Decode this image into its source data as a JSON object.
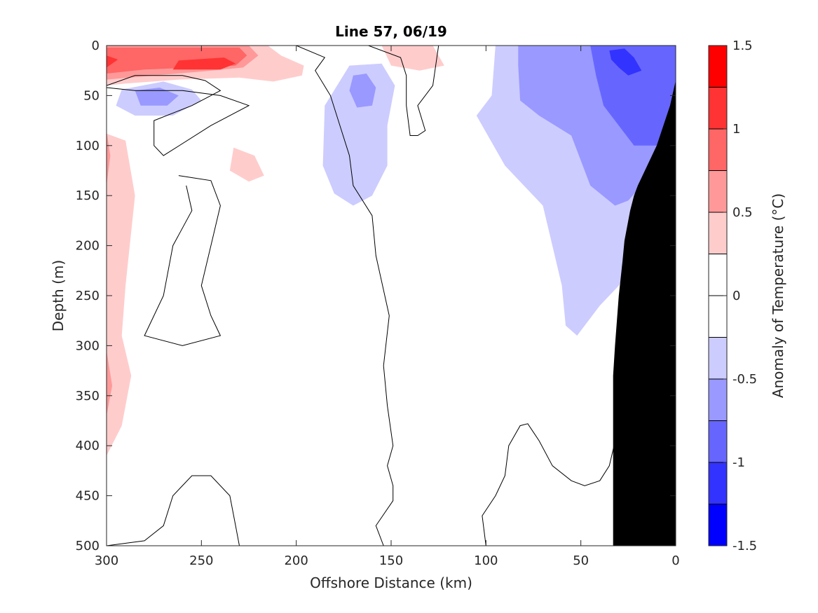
{
  "chart_data": {
    "type": "heatmap",
    "title": "Line 57, 06/19",
    "xlabel": "Offshore Distance (km)",
    "ylabel": "Depth (m)",
    "xlim": [
      300,
      0
    ],
    "ylim": [
      0,
      500
    ],
    "x_reversed": true,
    "y_reversed": true,
    "xticks": [
      300,
      250,
      200,
      150,
      100,
      50,
      0
    ],
    "yticks": [
      0,
      50,
      100,
      150,
      200,
      250,
      300,
      350,
      400,
      450,
      500
    ],
    "colorbar": {
      "label": "Anomaly of Temperature (°C)",
      "range": [
        -1.5,
        1.5
      ],
      "levels": [
        -1.5,
        -1.25,
        -1.0,
        -0.75,
        -0.5,
        -0.25,
        0,
        0.25,
        0.5,
        0.75,
        1.0,
        1.25,
        1.5
      ],
      "colors": [
        "#0000ff",
        "#3333ff",
        "#6666ff",
        "#9999ff",
        "#ccccff",
        "#ffffff",
        "#ffffff",
        "#ffcccc",
        "#ff9999",
        "#ff6666",
        "#ff3333",
        "#ff0000"
      ],
      "tick_labels": [
        "1.5",
        "1",
        "0.5",
        "0",
        "-0.5",
        "-1",
        "-1.5"
      ],
      "tick_values": [
        1.5,
        1.0,
        0.5,
        0,
        -0.5,
        -1.0,
        -1.5
      ]
    },
    "bathymetry_color": "#000000",
    "regions": [
      {
        "level": 0.5,
        "color": "#ffcccc",
        "points": [
          [
            300,
            0
          ],
          [
            215,
            0
          ],
          [
            208,
            10
          ],
          [
            196,
            20
          ],
          [
            197,
            30
          ],
          [
            212,
            36
          ],
          [
            230,
            32
          ],
          [
            262,
            34
          ],
          [
            290,
            38
          ],
          [
            300,
            40
          ]
        ]
      },
      {
        "level": 0.75,
        "color": "#ff9999",
        "points": [
          [
            300,
            0
          ],
          [
            225,
            0
          ],
          [
            220,
            10
          ],
          [
            228,
            22
          ],
          [
            250,
            26
          ],
          [
            275,
            30
          ],
          [
            300,
            34
          ]
        ]
      },
      {
        "level": 1.0,
        "color": "#ff6666",
        "points": [
          [
            300,
            2
          ],
          [
            230,
            2
          ],
          [
            226,
            10
          ],
          [
            232,
            20
          ],
          [
            255,
            22
          ],
          [
            280,
            24
          ],
          [
            300,
            28
          ]
        ]
      },
      {
        "level": 1.25,
        "color": "#ff3333",
        "points": [
          [
            300,
            10
          ],
          [
            294,
            14
          ],
          [
            300,
            22
          ]
        ]
      },
      {
        "level": 1.25,
        "color": "#ff3333",
        "points": [
          [
            262,
            15
          ],
          [
            238,
            12
          ],
          [
            232,
            18
          ],
          [
            240,
            24
          ],
          [
            265,
            24
          ]
        ]
      },
      {
        "level": 0.5,
        "color": "#ffcccc",
        "points": [
          [
            155,
            0
          ],
          [
            128,
            0
          ],
          [
            122,
            20
          ],
          [
            135,
            25
          ],
          [
            150,
            20
          ]
        ]
      },
      {
        "level": 0.5,
        "color": "#ffcccc",
        "points": [
          [
            300,
            88
          ],
          [
            290,
            95
          ],
          [
            285,
            150
          ],
          [
            290,
            240
          ],
          [
            292,
            290
          ],
          [
            287,
            330
          ],
          [
            292,
            380
          ],
          [
            300,
            410
          ]
        ]
      },
      {
        "level": 0.75,
        "color": "#ff9999",
        "points": [
          [
            300,
            85
          ],
          [
            298,
            110
          ],
          [
            300,
            140
          ]
        ]
      },
      {
        "level": 0.75,
        "color": "#ff9999",
        "points": [
          [
            300,
            305
          ],
          [
            297,
            340
          ],
          [
            300,
            370
          ]
        ]
      },
      {
        "level": 0.5,
        "color": "#ffcccc",
        "points": [
          [
            233,
            102
          ],
          [
            222,
            110
          ],
          [
            217,
            130
          ],
          [
            225,
            136
          ],
          [
            235,
            125
          ]
        ]
      },
      {
        "level": -0.25,
        "color": "#ccccff",
        "points": [
          [
            292,
            44
          ],
          [
            270,
            36
          ],
          [
            255,
            44
          ],
          [
            250,
            55
          ],
          [
            265,
            70
          ],
          [
            285,
            70
          ],
          [
            295,
            60
          ]
        ]
      },
      {
        "level": -0.5,
        "color": "#9999ff",
        "points": [
          [
            285,
            45
          ],
          [
            272,
            42
          ],
          [
            262,
            50
          ],
          [
            268,
            60
          ],
          [
            282,
            60
          ]
        ]
      },
      {
        "level": -0.25,
        "color": "#ccccff",
        "points": [
          [
            172,
            20
          ],
          [
            155,
            18
          ],
          [
            148,
            40
          ],
          [
            152,
            80
          ],
          [
            152,
            120
          ],
          [
            160,
            150
          ],
          [
            170,
            160
          ],
          [
            180,
            148
          ],
          [
            186,
            120
          ],
          [
            185,
            60
          ]
        ]
      },
      {
        "level": -0.5,
        "color": "#9999ff",
        "points": [
          [
            170,
            30
          ],
          [
            163,
            28
          ],
          [
            158,
            42
          ],
          [
            160,
            60
          ],
          [
            168,
            62
          ],
          [
            172,
            45
          ]
        ]
      },
      {
        "level": -0.25,
        "color": "#ccccff",
        "points": [
          [
            95,
            0
          ],
          [
            0,
            0
          ],
          [
            0,
            120
          ],
          [
            15,
            170
          ],
          [
            25,
            220
          ],
          [
            30,
            240
          ],
          [
            40,
            260
          ],
          [
            52,
            290
          ],
          [
            58,
            280
          ],
          [
            60,
            240
          ],
          [
            70,
            160
          ],
          [
            90,
            120
          ],
          [
            105,
            70
          ],
          [
            97,
            50
          ]
        ]
      },
      {
        "level": -0.5,
        "color": "#9999ff",
        "points": [
          [
            83,
            0
          ],
          [
            0,
            0
          ],
          [
            0,
            110
          ],
          [
            18,
            140
          ],
          [
            25,
            155
          ],
          [
            32,
            160
          ],
          [
            45,
            140
          ],
          [
            55,
            90
          ],
          [
            72,
            70
          ],
          [
            82,
            55
          ],
          [
            83,
            20
          ]
        ]
      },
      {
        "level": -0.75,
        "color": "#6666ff",
        "points": [
          [
            45,
            0
          ],
          [
            0,
            0
          ],
          [
            0,
            100
          ],
          [
            8,
            100
          ],
          [
            22,
            100
          ],
          [
            30,
            80
          ],
          [
            38,
            60
          ],
          [
            42,
            30
          ]
        ]
      },
      {
        "level": -1.0,
        "color": "#3333ff",
        "points": [
          [
            35,
            5
          ],
          [
            27,
            3
          ],
          [
            22,
            12
          ],
          [
            18,
            25
          ],
          [
            25,
            30
          ],
          [
            30,
            22
          ],
          [
            34,
            14
          ]
        ]
      }
    ],
    "bathymetry": [
      [
        33,
        500
      ],
      [
        0,
        500
      ],
      [
        0,
        35
      ],
      [
        3,
        60
      ],
      [
        10,
        100
      ],
      [
        20,
        140
      ],
      [
        22,
        150
      ],
      [
        24,
        165
      ],
      [
        27,
        195
      ],
      [
        28,
        215
      ],
      [
        30,
        250
      ],
      [
        32,
        300
      ],
      [
        33,
        330
      ],
      [
        33,
        500
      ]
    ]
  },
  "contours": {
    "zero_line_main": [
      [
        200,
        0
      ],
      [
        185,
        12
      ],
      [
        190,
        25
      ],
      [
        182,
        50
      ],
      [
        172,
        110
      ],
      [
        170,
        140
      ],
      [
        160,
        170
      ],
      [
        158,
        210
      ],
      [
        151,
        270
      ],
      [
        154,
        320
      ],
      [
        152,
        360
      ],
      [
        149,
        400
      ],
      [
        152,
        420
      ],
      [
        149,
        440
      ],
      [
        149,
        455
      ],
      [
        158,
        480
      ],
      [
        154,
        500
      ]
    ],
    "zero_line_right": [
      [
        162,
        0
      ],
      [
        145,
        12
      ],
      [
        142,
        30
      ],
      [
        142,
        60
      ],
      [
        140,
        90
      ],
      [
        136,
        90
      ],
      [
        132,
        85
      ],
      [
        136,
        60
      ],
      [
        128,
        40
      ],
      [
        125,
        0
      ]
    ],
    "zero_line_upper_left": [
      [
        300,
        40
      ],
      [
        285,
        30
      ],
      [
        260,
        30
      ],
      [
        248,
        35
      ],
      [
        240,
        45
      ],
      [
        255,
        60
      ],
      [
        275,
        75
      ],
      [
        275,
        100
      ],
      [
        270,
        110
      ],
      [
        245,
        80
      ],
      [
        225,
        60
      ],
      [
        240,
        50
      ],
      [
        260,
        45
      ],
      [
        285,
        45
      ],
      [
        300,
        42
      ]
    ],
    "zero_line_left_loop": [
      [
        262,
        130
      ],
      [
        245,
        135
      ],
      [
        240,
        160
      ],
      [
        245,
        200
      ],
      [
        250,
        240
      ],
      [
        245,
        270
      ],
      [
        240,
        290
      ],
      [
        260,
        300
      ],
      [
        280,
        290
      ],
      [
        270,
        250
      ],
      [
        265,
        200
      ],
      [
        255,
        165
      ],
      [
        258,
        140
      ]
    ],
    "zero_line_bottom_left": [
      [
        300,
        500
      ],
      [
        280,
        495
      ],
      [
        270,
        480
      ],
      [
        265,
        450
      ],
      [
        255,
        430
      ],
      [
        245,
        430
      ],
      [
        235,
        450
      ],
      [
        232,
        480
      ],
      [
        230,
        500
      ]
    ],
    "zero_line_bottom_right": [
      [
        100,
        500
      ],
      [
        102,
        470
      ],
      [
        95,
        450
      ],
      [
        90,
        430
      ],
      [
        88,
        400
      ],
      [
        82,
        380
      ],
      [
        78,
        378
      ],
      [
        72,
        395
      ],
      [
        65,
        420
      ],
      [
        55,
        435
      ],
      [
        48,
        440
      ],
      [
        40,
        435
      ],
      [
        35,
        420
      ],
      [
        30,
        380
      ]
    ]
  }
}
